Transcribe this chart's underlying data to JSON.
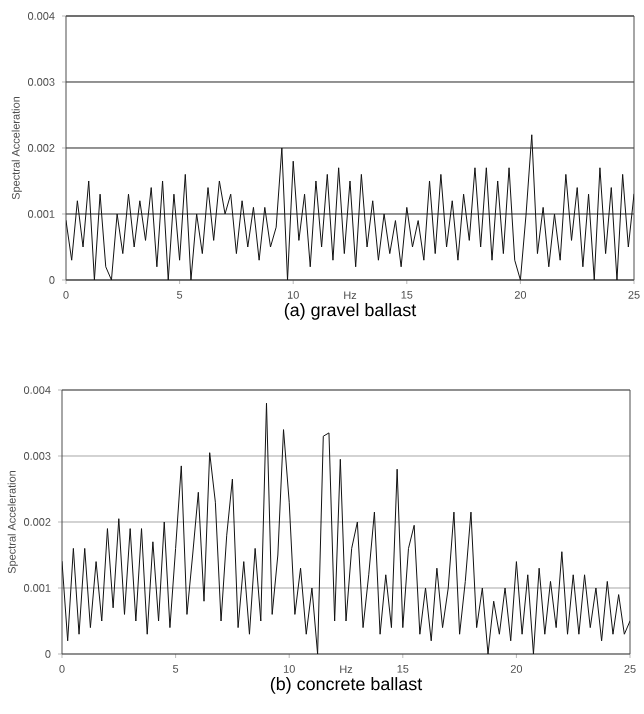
{
  "chart_data": [
    {
      "type": "line",
      "title": "(a)  gravel  ballast",
      "xlabel": "Hz",
      "ylabel": "Spectral Acceleration",
      "color": "#111111",
      "grid": "y",
      "xlim": [
        0,
        25
      ],
      "ylim": [
        0,
        0.004
      ],
      "xticks": [
        0,
        5,
        10,
        15,
        20,
        25
      ],
      "yticks": [
        0,
        0.001,
        0.002,
        0.003,
        0.004
      ],
      "x": [
        0,
        0.25,
        0.5,
        0.75,
        1,
        1.25,
        1.5,
        1.75,
        2,
        2.25,
        2.5,
        2.75,
        3,
        3.25,
        3.5,
        3.75,
        4,
        4.25,
        4.5,
        4.75,
        5,
        5.25,
        5.5,
        5.75,
        6,
        6.25,
        6.5,
        6.75,
        7,
        7.25,
        7.5,
        7.75,
        8,
        8.25,
        8.5,
        8.75,
        9,
        9.25,
        9.5,
        9.75,
        10,
        10.25,
        10.5,
        10.75,
        11,
        11.25,
        11.5,
        11.75,
        12,
        12.25,
        12.5,
        12.75,
        13,
        13.25,
        13.5,
        13.75,
        14,
        14.25,
        14.5,
        14.75,
        15,
        15.25,
        15.5,
        15.75,
        16,
        16.25,
        16.5,
        16.75,
        17,
        17.25,
        17.5,
        17.75,
        18,
        18.25,
        18.5,
        18.75,
        19,
        19.25,
        19.5,
        19.75,
        20,
        20.25,
        20.5,
        20.75,
        21,
        21.25,
        21.5,
        21.75,
        22,
        22.25,
        22.5,
        22.75,
        23,
        23.25,
        23.5,
        23.75,
        24,
        24.25,
        24.5,
        24.75,
        25
      ],
      "values": [
        0.0009,
        0.0003,
        0.0012,
        0.0005,
        0.0015,
        0.0,
        0.0013,
        0.0002,
        0.0,
        0.001,
        0.0004,
        0.0013,
        0.0005,
        0.0012,
        0.0006,
        0.0014,
        0.0002,
        0.0015,
        0.0,
        0.0013,
        0.0003,
        0.0016,
        0.0,
        0.001,
        0.0004,
        0.0014,
        0.0006,
        0.0015,
        0.001,
        0.0013,
        0.0004,
        0.0012,
        0.0005,
        0.0011,
        0.0003,
        0.0011,
        0.0005,
        0.0008,
        0.002,
        0.0,
        0.0018,
        0.0006,
        0.0013,
        0.0002,
        0.0015,
        0.0005,
        0.0016,
        0.0003,
        0.0017,
        0.0004,
        0.0015,
        0.0002,
        0.0016,
        0.0005,
        0.0012,
        0.0003,
        0.001,
        0.0004,
        0.0009,
        0.0002,
        0.0011,
        0.0005,
        0.0009,
        0.0003,
        0.0015,
        0.0004,
        0.0016,
        0.0005,
        0.0012,
        0.0003,
        0.0013,
        0.0006,
        0.0017,
        0.0005,
        0.0017,
        0.0003,
        0.0015,
        0.0004,
        0.0017,
        0.0003,
        0.0,
        0.001,
        0.0022,
        0.0004,
        0.0011,
        0.0002,
        0.001,
        0.0003,
        0.0016,
        0.0006,
        0.0014,
        0.0002,
        0.0013,
        0.0,
        0.0017,
        0.0004,
        0.0014,
        0.0,
        0.0016,
        0.0005,
        0.0013
      ]
    },
    {
      "type": "line",
      "title": "(b)  concrete  ballast",
      "xlabel": "Hz",
      "ylabel": "Spectral Acceleration",
      "color": "#111111",
      "grid": "y",
      "xlim": [
        0,
        25
      ],
      "ylim": [
        0,
        0.004
      ],
      "xticks": [
        0,
        5,
        10,
        15,
        20,
        25
      ],
      "yticks": [
        0,
        0.001,
        0.002,
        0.003,
        0.004
      ],
      "x": [
        0,
        0.25,
        0.5,
        0.75,
        1,
        1.25,
        1.5,
        1.75,
        2,
        2.25,
        2.5,
        2.75,
        3,
        3.25,
        3.5,
        3.75,
        4,
        4.25,
        4.5,
        4.75,
        5,
        5.25,
        5.5,
        5.75,
        6,
        6.25,
        6.5,
        6.75,
        7,
        7.25,
        7.5,
        7.75,
        8,
        8.25,
        8.5,
        8.75,
        9,
        9.25,
        9.5,
        9.75,
        10,
        10.25,
        10.5,
        10.75,
        11,
        11.25,
        11.5,
        11.75,
        12,
        12.25,
        12.5,
        12.75,
        13,
        13.25,
        13.5,
        13.75,
        14,
        14.25,
        14.5,
        14.75,
        15,
        15.25,
        15.5,
        15.75,
        16,
        16.25,
        16.5,
        16.75,
        17,
        17.25,
        17.5,
        17.75,
        18,
        18.25,
        18.5,
        18.75,
        19,
        19.25,
        19.5,
        19.75,
        20,
        20.25,
        20.5,
        20.75,
        21,
        21.25,
        21.5,
        21.75,
        22,
        22.25,
        22.5,
        22.75,
        23,
        23.25,
        23.5,
        23.75,
        24,
        24.25,
        24.5,
        24.75,
        25
      ],
      "values": [
        0.0014,
        0.0002,
        0.0016,
        0.0003,
        0.0016,
        0.0004,
        0.0014,
        0.0005,
        0.0019,
        0.0007,
        0.00205,
        0.0006,
        0.0019,
        0.0005,
        0.0019,
        0.0003,
        0.0017,
        0.0005,
        0.002,
        0.0004,
        0.0016,
        0.00285,
        0.0006,
        0.0015,
        0.00245,
        0.0008,
        0.00305,
        0.0023,
        0.0005,
        0.0018,
        0.00265,
        0.0004,
        0.0014,
        0.0003,
        0.0016,
        0.0005,
        0.0038,
        0.0006,
        0.0015,
        0.0034,
        0.0023,
        0.0006,
        0.0013,
        0.0003,
        0.001,
        0.0,
        0.0033,
        0.00335,
        0.0005,
        0.00295,
        0.0005,
        0.0016,
        0.002,
        0.0004,
        0.0012,
        0.00215,
        0.0003,
        0.0012,
        0.0004,
        0.0028,
        0.0004,
        0.0016,
        0.00195,
        0.0003,
        0.001,
        0.0002,
        0.0013,
        0.0004,
        0.001,
        0.00215,
        0.0003,
        0.0011,
        0.00215,
        0.0004,
        0.001,
        0.0,
        0.0008,
        0.0003,
        0.001,
        0.0002,
        0.0014,
        0.0003,
        0.0012,
        0.0,
        0.0013,
        0.0003,
        0.0011,
        0.0004,
        0.00155,
        0.0003,
        0.0012,
        0.0003,
        0.0012,
        0.0004,
        0.001,
        0.0002,
        0.0011,
        0.0003,
        0.0009,
        0.0003,
        0.0005
      ]
    }
  ]
}
